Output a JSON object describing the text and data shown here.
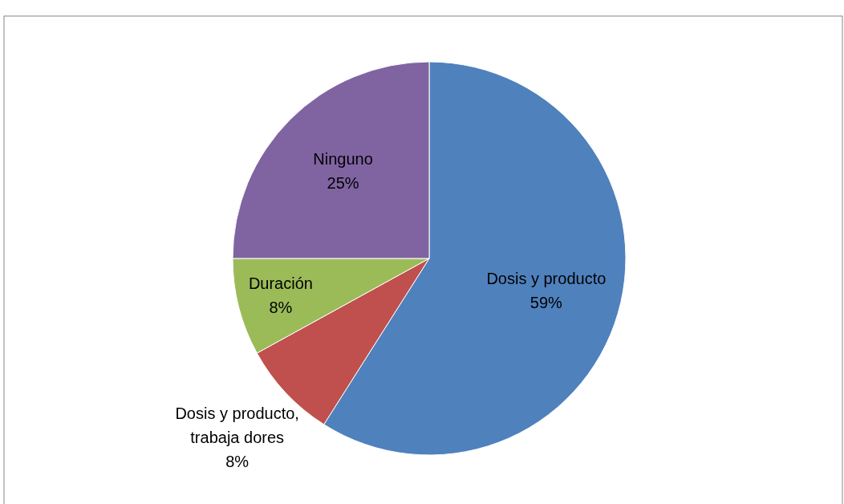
{
  "chart_data": {
    "type": "pie",
    "categories": [
      "Dosis y producto",
      "Dosis y producto, trabaja dores",
      "Duración",
      "Ninguno"
    ],
    "values": [
      59,
      8,
      8,
      25
    ],
    "colors": [
      "#4f81bd",
      "#c0504d",
      "#9bbb59",
      "#8064a2"
    ],
    "value_labels": [
      "59%",
      "8%",
      "8%",
      "25%"
    ]
  }
}
